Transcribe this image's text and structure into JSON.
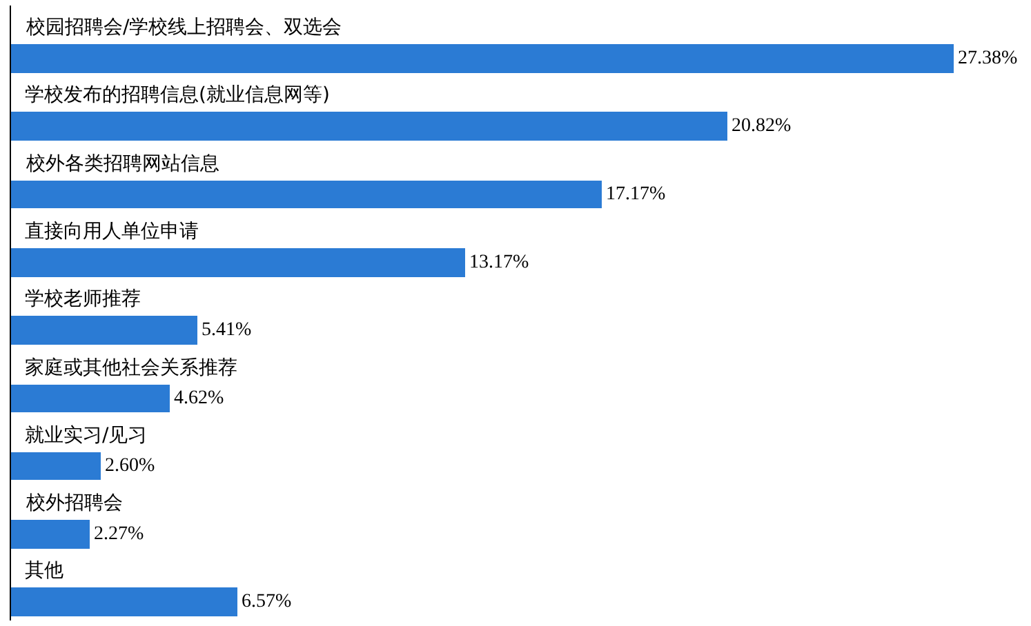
{
  "chart_data": {
    "type": "bar",
    "orientation": "horizontal",
    "categories": [
      "校园招聘会/学校线上招聘会、双选会",
      "学校发布的招聘信息(就业信息网等)",
      "校外各类招聘网站信息",
      "直接向用人单位申请",
      "学校老师推荐",
      "家庭或其他社会关系推荐",
      "就业实习/见习",
      "校外招聘会",
      "其他"
    ],
    "values": [
      27.38,
      20.82,
      17.17,
      13.17,
      5.41,
      4.62,
      2.6,
      2.27,
      6.57
    ],
    "value_labels": [
      "27.38%",
      "20.82%",
      "17.17%",
      "13.17%",
      "5.41%",
      "4.62%",
      "2.60%",
      "2.27%",
      "6.57%"
    ],
    "color": "#2b7bd4"
  }
}
